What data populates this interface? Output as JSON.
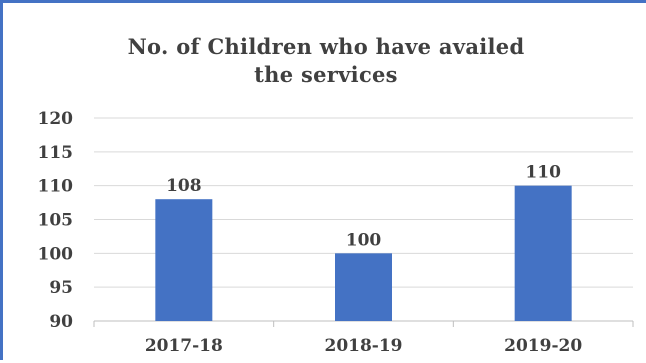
{
  "chart_data": {
    "type": "bar",
    "title_lines": [
      "No. of Children who have availed",
      "the services"
    ],
    "categories": [
      "2017-18",
      "2018-19",
      "2019-20"
    ],
    "values": [
      108,
      100,
      110
    ],
    "data_labels": [
      "108",
      "100",
      "110"
    ],
    "xlabel": "",
    "ylabel": "",
    "ylim": [
      90,
      120
    ],
    "yticks": [
      90,
      95,
      100,
      105,
      110,
      115,
      120
    ],
    "grid": true,
    "legend": "none",
    "bar_color": "#4472c4",
    "frame_color": "#4472c4"
  }
}
